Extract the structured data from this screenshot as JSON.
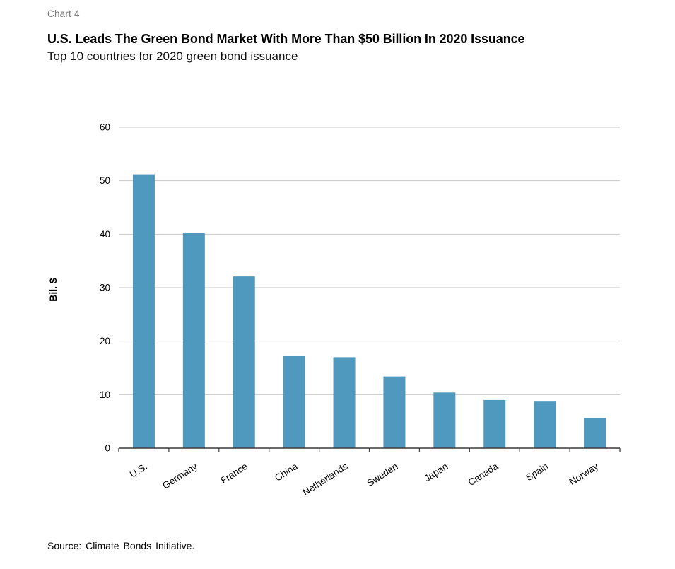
{
  "header": {
    "chart_label": "Chart 4",
    "title": "U.S. Leads The Green Bond Market With More Than $50 Billion In 2020 Issuance",
    "subtitle": "Top 10 countries for 2020 green bond issuance"
  },
  "chart_data": {
    "type": "bar",
    "title": "U.S. Leads The Green Bond Market With More Than $50 Billion In 2020 Issuance",
    "subtitle": "Top 10 countries for 2020 green bond issuance",
    "categories": [
      "U.S.",
      "Germany",
      "France",
      "China",
      "Netherlands",
      "Sweden",
      "Japan",
      "Canada",
      "Spain",
      "Norway"
    ],
    "values": [
      51.2,
      40.3,
      32.1,
      17.2,
      17.0,
      13.4,
      10.4,
      9.0,
      8.7,
      5.6
    ],
    "xlabel": "",
    "ylabel": "Bil. $",
    "ylim": [
      0,
      60
    ],
    "ytick_step": 10,
    "yticks": [
      0,
      10,
      20,
      30,
      40,
      50,
      60
    ],
    "grid": true,
    "legend": "none",
    "colors": {
      "bar": "#4F99BE",
      "gridline": "#c9c9c9",
      "axis": "#3a3a3a",
      "tick_text": "#000000"
    }
  },
  "footer": {
    "source": "Source: Climate Bonds Initiative."
  }
}
